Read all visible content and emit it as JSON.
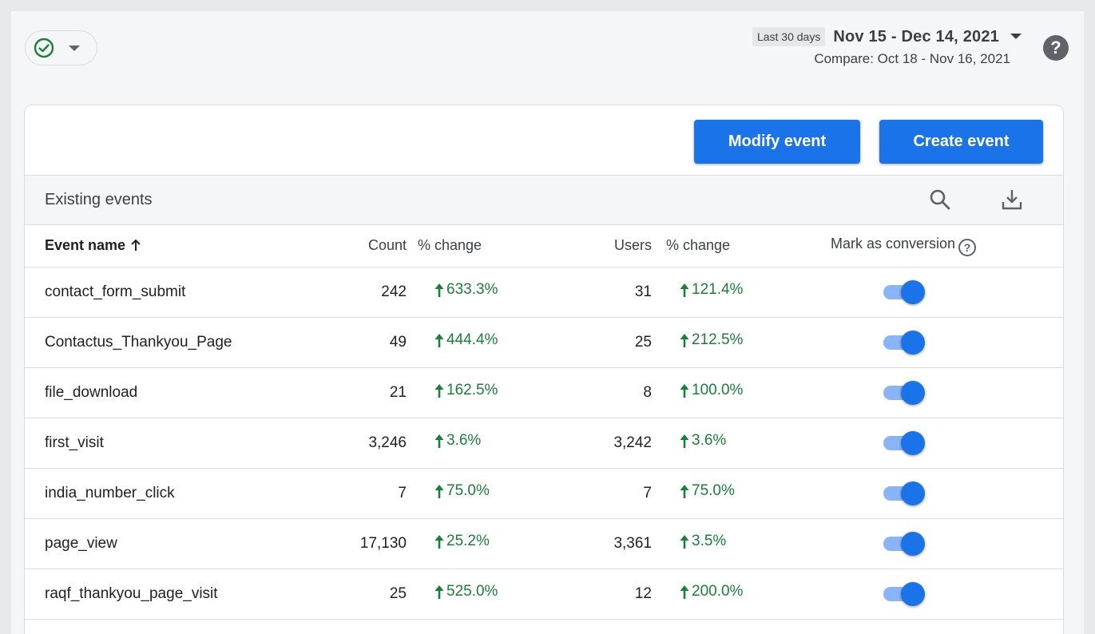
{
  "header": {
    "date_range_preset": "Last 30 days",
    "date_range": "Nov 15 - Dec 14, 2021",
    "compare": "Compare: Oct 18 - Nov 16, 2021",
    "help_label": "?"
  },
  "toolbar": {
    "modify_label": "Modify event",
    "create_label": "Create event"
  },
  "section": {
    "title": "Existing events"
  },
  "table": {
    "columns": {
      "event_name": "Event name",
      "count": "Count",
      "count_change": "% change",
      "users": "Users",
      "users_change": "% change",
      "conversion": "Mark as conversion"
    },
    "rows": [
      {
        "name": "contact_form_submit",
        "count": "242",
        "count_change": "633.3%",
        "users": "31",
        "users_change": "121.4%",
        "conversion": true
      },
      {
        "name": "Contactus_Thankyou_Page",
        "count": "49",
        "count_change": "444.4%",
        "users": "25",
        "users_change": "212.5%",
        "conversion": true
      },
      {
        "name": "file_download",
        "count": "21",
        "count_change": "162.5%",
        "users": "8",
        "users_change": "100.0%",
        "conversion": true
      },
      {
        "name": "first_visit",
        "count": "3,246",
        "count_change": "3.6%",
        "users": "3,242",
        "users_change": "3.6%",
        "conversion": true
      },
      {
        "name": "india_number_click",
        "count": "7",
        "count_change": "75.0%",
        "users": "7",
        "users_change": "75.0%",
        "conversion": true
      },
      {
        "name": "page_view",
        "count": "17,130",
        "count_change": "25.2%",
        "users": "3,361",
        "users_change": "3.5%",
        "conversion": true
      },
      {
        "name": "raqf_thankyou_page_visit",
        "count": "25",
        "count_change": "525.0%",
        "users": "12",
        "users_change": "200.0%",
        "conversion": true
      }
    ]
  },
  "colors": {
    "accent": "#1a73e8",
    "positive": "#188038",
    "toggle_track": "#8ab4f8"
  },
  "icons": [
    "check-circle-icon",
    "chevron-down-icon",
    "help-icon",
    "search-icon",
    "download-icon",
    "arrow-up-icon",
    "question-icon"
  ]
}
